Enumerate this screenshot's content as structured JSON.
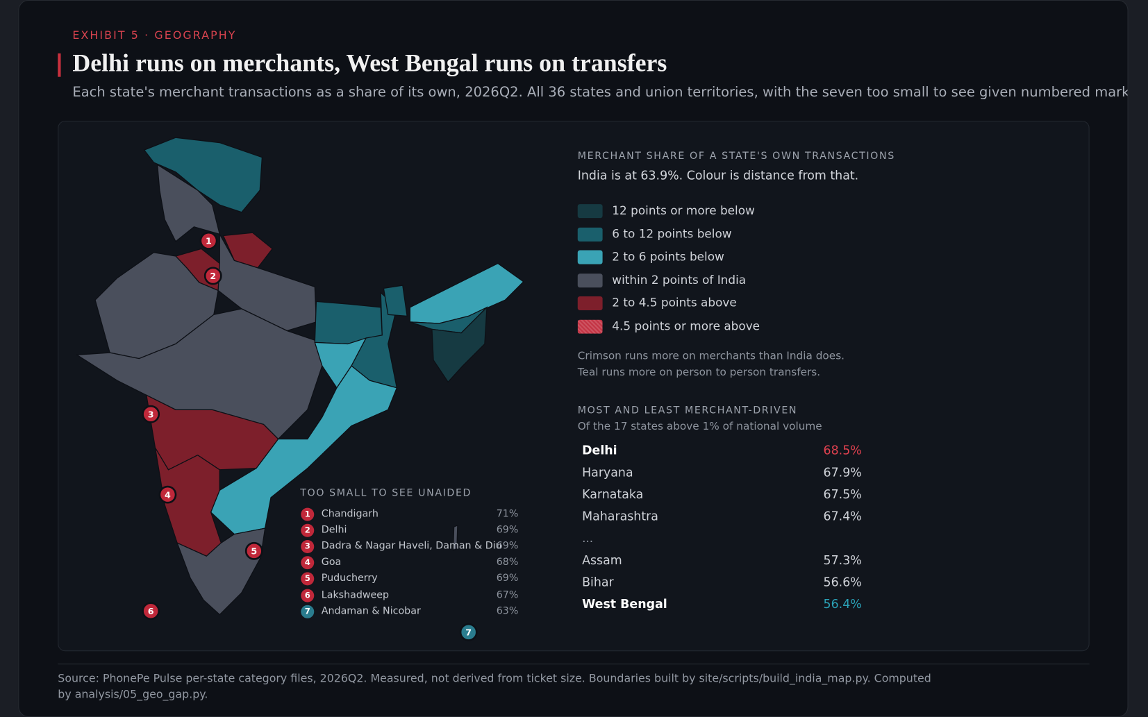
{
  "header": {
    "kicker": "EXHIBIT 5 · GEOGRAPHY",
    "title": "Delhi runs on merchants, West Bengal runs on transfers",
    "subtitle": "Each state's merchant transactions as a share of its own, 2026Q2. All 36 states and union territories, with the seven too small to see given numbered markers an"
  },
  "legend": {
    "heading": "MERCHANT SHARE OF A STATE'S OWN TRANSACTIONS",
    "note": "India is at 63.9%. Colour is distance from that.",
    "items": [
      {
        "label": "12 points or more below",
        "color": "#163a42"
      },
      {
        "label": "6 to 12 points below",
        "color": "#1a5f6c"
      },
      {
        "label": "2 to 6 points below",
        "color": "#3aa3b5"
      },
      {
        "label": "within 2 points of India",
        "color": "#4a4f5c"
      },
      {
        "label": "2 to 4.5 points above",
        "color": "#7d1f2b"
      },
      {
        "label": "4.5 points or more above",
        "color": "#c43545"
      }
    ],
    "explanation": [
      "Crimson runs more on merchants than India does.",
      "Teal runs more on person to person transfers."
    ]
  },
  "ranking": {
    "heading": "MOST AND LEAST MERCHANT-DRIVEN",
    "subheading": "Of the 17 states above 1% of national volume",
    "top": [
      {
        "state": "Delhi",
        "value": "68.5%"
      },
      {
        "state": "Haryana",
        "value": "67.9%"
      },
      {
        "state": "Karnataka",
        "value": "67.5%"
      },
      {
        "state": "Maharashtra",
        "value": "67.4%"
      }
    ],
    "ellipsis": "...",
    "bottom": [
      {
        "state": "Assam",
        "value": "57.3%"
      },
      {
        "state": "Bihar",
        "value": "56.6%"
      },
      {
        "state": "West Bengal",
        "value": "56.4%"
      }
    ]
  },
  "small": {
    "heading": "TOO SMALL TO SEE UNAIDED",
    "rows": [
      {
        "num": "1",
        "name": "Chandigarh",
        "value": "71%"
      },
      {
        "num": "2",
        "name": "Delhi",
        "value": "69%"
      },
      {
        "num": "3",
        "name": "Dadra & Nagar Haveli, Daman & Diu",
        "value": "69%"
      },
      {
        "num": "4",
        "name": "Goa",
        "value": "68%"
      },
      {
        "num": "5",
        "name": "Puducherry",
        "value": "69%"
      },
      {
        "num": "6",
        "name": "Lakshadweep",
        "value": "67%"
      },
      {
        "num": "7",
        "name": "Andaman & Nicobar",
        "value": "63%"
      }
    ]
  },
  "footer": {
    "source": "Source: PhonePe Pulse per-state category files, 2026Q2. Measured, not derived from ticket size. Boundaries built by site/scripts/build_india_map.py. Computed by analysis/05_geo_gap.py."
  }
}
